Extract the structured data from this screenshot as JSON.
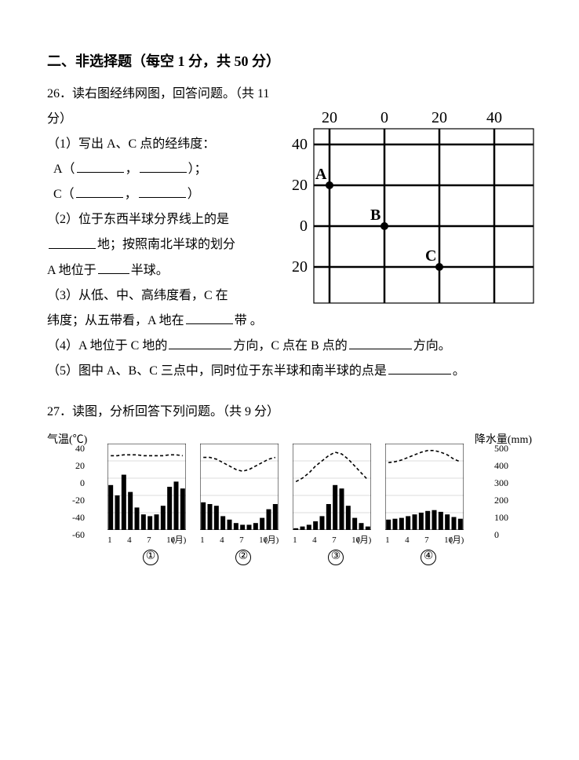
{
  "section": {
    "title": "二、非选择题（每空 1 分，共 50 分）"
  },
  "q26": {
    "number": "26．",
    "prompt": "读右图经纬网图，回答问题。（共 11 分）",
    "sub1": "（1）写出 A、C 点的经纬度：",
    "lineA_prefix": "A（",
    "lineA_mid": "，",
    "lineA_suffix": "）；",
    "lineC_prefix": "C（",
    "lineC_mid": "，",
    "lineC_suffix": "）",
    "sub2_a": "（2）位于东西半球分界线上的是",
    "sub2_b": "地；按照南北半球的划分",
    "sub2_c_prefix": "A 地位于",
    "sub2_c_suffix": "半球。",
    "sub3_a": "（3）从低、中、高纬度看，C 在",
    "sub3_b_prefix": "纬度；从五带看，A 地在",
    "sub3_b_suffix": "带 。",
    "sub4_a": "（4）A 地位于 C 地的",
    "sub4_b": "方向，C 点在 B 点的",
    "sub4_c": "方向。",
    "sub5_a": "（5）图中 A、B、C 三点中，同时位于东半球和南半球的点是",
    "sub5_b": "。",
    "grid": {
      "xlabels": [
        "20",
        "0",
        "20",
        "40"
      ],
      "ylabels": [
        "40",
        "20",
        "0",
        "20"
      ],
      "line_color": "#000000",
      "font_size": 20,
      "points": [
        {
          "name": "A",
          "col": 0,
          "row": 1
        },
        {
          "name": "B",
          "col": 1,
          "row": 2
        },
        {
          "name": "C",
          "col": 2,
          "row": 3
        }
      ]
    }
  },
  "q27": {
    "number": "27．",
    "prompt": "读图，分析回答下列问题。（共 9 分）",
    "axis_left_label": "气温(℃)",
    "axis_right_label": "降水量(mm)",
    "temp_ticks": [
      40,
      20,
      0,
      -20,
      -40,
      -60
    ],
    "precip_ticks": [
      500,
      400,
      300,
      200,
      100,
      0
    ],
    "month_tick_labels": [
      "1",
      "4",
      "7",
      "10"
    ],
    "month_unit": "(月)",
    "chart_bg": "#ffffff",
    "bar_color": "#000000",
    "line_color": "#000000",
    "grid_color": "#000000",
    "charts": [
      {
        "id": "①",
        "temp": [
          26,
          26,
          27,
          27,
          27,
          26,
          26,
          26,
          26,
          27,
          27,
          26
        ],
        "precip": [
          260,
          200,
          320,
          220,
          130,
          90,
          80,
          90,
          140,
          250,
          280,
          240
        ]
      },
      {
        "id": "②",
        "temp": [
          24,
          24,
          22,
          18,
          14,
          10,
          8,
          10,
          14,
          18,
          22,
          24
        ],
        "precip": [
          160,
          150,
          140,
          80,
          60,
          40,
          30,
          30,
          40,
          70,
          120,
          150
        ]
      },
      {
        "id": "③",
        "temp": [
          -4,
          0,
          6,
          14,
          20,
          26,
          30,
          28,
          22,
          14,
          6,
          -2
        ],
        "precip": [
          10,
          20,
          30,
          50,
          80,
          150,
          260,
          240,
          140,
          70,
          40,
          20
        ]
      },
      {
        "id": "④",
        "temp": [
          18,
          19,
          21,
          24,
          27,
          30,
          32,
          32,
          30,
          27,
          22,
          19
        ],
        "precip": [
          60,
          65,
          70,
          80,
          90,
          100,
          110,
          115,
          105,
          90,
          75,
          65
        ]
      }
    ]
  }
}
